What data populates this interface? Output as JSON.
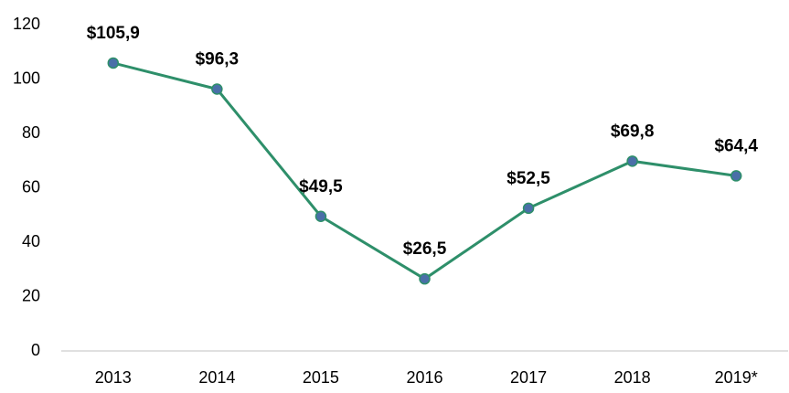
{
  "chart_data": {
    "type": "line",
    "categories": [
      "2013",
      "2014",
      "2015",
      "2016",
      "2017",
      "2018",
      "2019*"
    ],
    "values": [
      105.9,
      96.3,
      49.5,
      26.5,
      52.5,
      69.8,
      64.4
    ],
    "value_labels": [
      "$105,9",
      "$96,3",
      "$49,5",
      "$26,5",
      "$52,5",
      "$69,8",
      "$64,4"
    ],
    "color": "#2e8f6a",
    "marker_color": "#4a6fa8",
    "ylim": [
      0,
      120
    ],
    "yticks": [
      0,
      20,
      40,
      60,
      80,
      100,
      120
    ],
    "grid": false
  }
}
